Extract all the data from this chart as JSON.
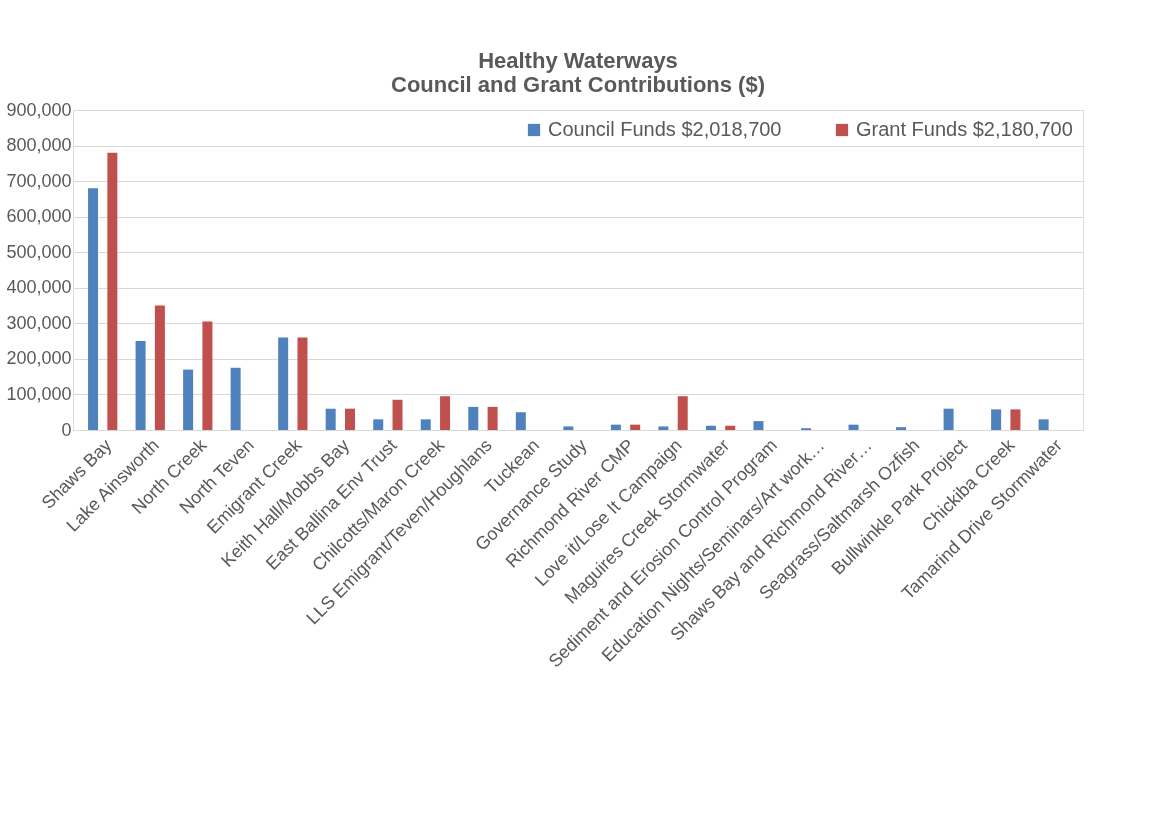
{
  "chart_data": {
    "type": "bar",
    "title": [
      "Healthy Waterways",
      "Council and Grant Contributions ($)"
    ],
    "categories": [
      "Shaws Bay",
      "Lake Ainsworth",
      "North Creek",
      "North Teven",
      "Emigrant Creek",
      "Keith Hall/Mobbs Bay",
      "East Ballina Env Trust",
      "Chilcotts/Maron Creek",
      "LLS Emigrant/Teven/Houghlans",
      "Tuckean",
      "Governance Study",
      "Richmond River CMP",
      "Love it/Lose It Campaign",
      "Maguires Creek Stormwater",
      "Sediment and Erosion Control Program",
      "Education Nights/Seminars/Art work…",
      "Shaws Bay and Richmond River…",
      "Seagrass/Saltmarsh Ozfish",
      "Bullwinkle Park Project",
      "Chickiba Creek",
      "Tamarind Drive Stormwater"
    ],
    "series": [
      {
        "name": "Council Funds $2,018,700",
        "color": "#4f81bd",
        "values": [
          680000,
          250000,
          170000,
          175000,
          260000,
          60000,
          30000,
          30000,
          65000,
          50000,
          10000,
          15000,
          10000,
          12000,
          25000,
          5000,
          15000,
          8000,
          60000,
          58000,
          30000
        ]
      },
      {
        "name": "Grant Funds $2,180,700",
        "color": "#c0504d",
        "values": [
          780000,
          350000,
          305000,
          null,
          260000,
          60000,
          85000,
          95000,
          65000,
          null,
          null,
          15000,
          95000,
          12000,
          null,
          null,
          null,
          null,
          null,
          58000,
          null
        ]
      }
    ],
    "ylim": [
      0,
      900000
    ],
    "yticks": [
      {
        "value": 0,
        "label": "0"
      },
      {
        "value": 100000,
        "label": "100,000"
      },
      {
        "value": 200000,
        "label": "200,000"
      },
      {
        "value": 300000,
        "label": "300,000"
      },
      {
        "value": 400000,
        "label": "400,000"
      },
      {
        "value": 500000,
        "label": "500,000"
      },
      {
        "value": 600000,
        "label": "600,000"
      },
      {
        "value": 700000,
        "label": "700,000"
      },
      {
        "value": 800000,
        "label": "800,000"
      },
      {
        "value": 900000,
        "label": "900,000"
      }
    ],
    "grid": "y",
    "legend": "top right"
  }
}
